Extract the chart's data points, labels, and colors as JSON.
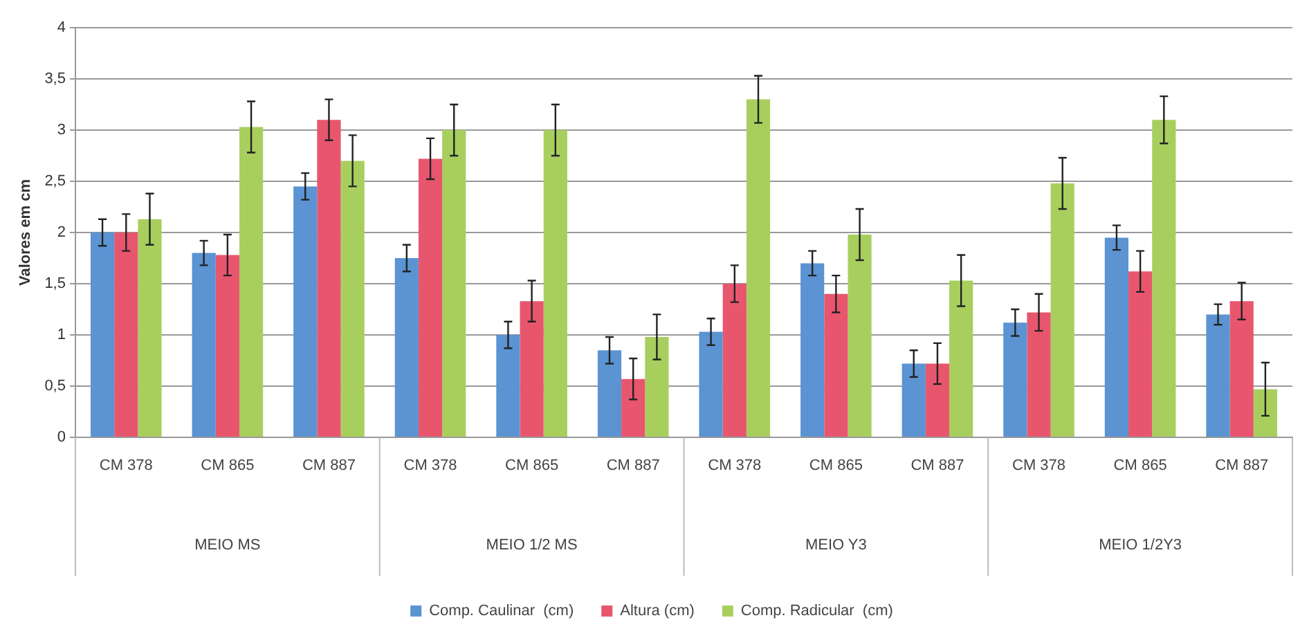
{
  "chart_data": {
    "type": "bar",
    "ylabel": "Valores em cm",
    "categories": [
      "CM 378",
      "CM 865",
      "CM 887",
      "CM 378",
      "CM 865",
      "CM 887",
      "CM 378",
      "CM 865",
      "CM 887",
      "CM 378",
      "CM 865",
      "CM 887"
    ],
    "annotations": [
      "MEIO MS",
      "MEIO 1/2 MS",
      "MEIO Y3",
      "MEIO 1/2Y3"
    ],
    "series": [
      {
        "name": "Comp. Caulinar  (cm)",
        "color": "#5b93d3",
        "values": [
          2.0,
          1.8,
          2.45,
          1.75,
          1.0,
          0.85,
          1.03,
          1.7,
          0.72,
          1.12,
          1.95,
          1.2
        ],
        "errors": [
          0.13,
          0.12,
          0.13,
          0.13,
          0.13,
          0.13,
          0.13,
          0.12,
          0.13,
          0.13,
          0.12,
          0.1
        ]
      },
      {
        "name": "Altura (cm)",
        "color": "#e8566e",
        "values": [
          2.0,
          1.78,
          3.1,
          2.72,
          1.33,
          0.57,
          1.5,
          1.4,
          0.72,
          1.22,
          1.62,
          1.33
        ],
        "errors": [
          0.18,
          0.2,
          0.2,
          0.2,
          0.2,
          0.2,
          0.18,
          0.18,
          0.2,
          0.18,
          0.2,
          0.18
        ]
      },
      {
        "name": "Comp. Radicular  (cm)",
        "color": "#a8cf5e",
        "values": [
          2.13,
          3.03,
          2.7,
          3.0,
          3.0,
          0.98,
          3.3,
          1.98,
          1.53,
          2.48,
          3.1,
          0.47
        ],
        "errors": [
          0.25,
          0.25,
          0.25,
          0.25,
          0.25,
          0.22,
          0.23,
          0.25,
          0.25,
          0.25,
          0.23,
          0.26
        ]
      }
    ],
    "ylim": [
      0,
      4
    ],
    "yticks": [
      0,
      {
        "value": 0.5,
        "label": "0,5"
      },
      1,
      {
        "value": 1.5,
        "label": "1,5"
      },
      2,
      {
        "value": 2.5,
        "label": "2,5"
      },
      3,
      {
        "value": 3.5,
        "label": "3,5"
      },
      4
    ],
    "grid": "y",
    "legend": "bottom"
  }
}
